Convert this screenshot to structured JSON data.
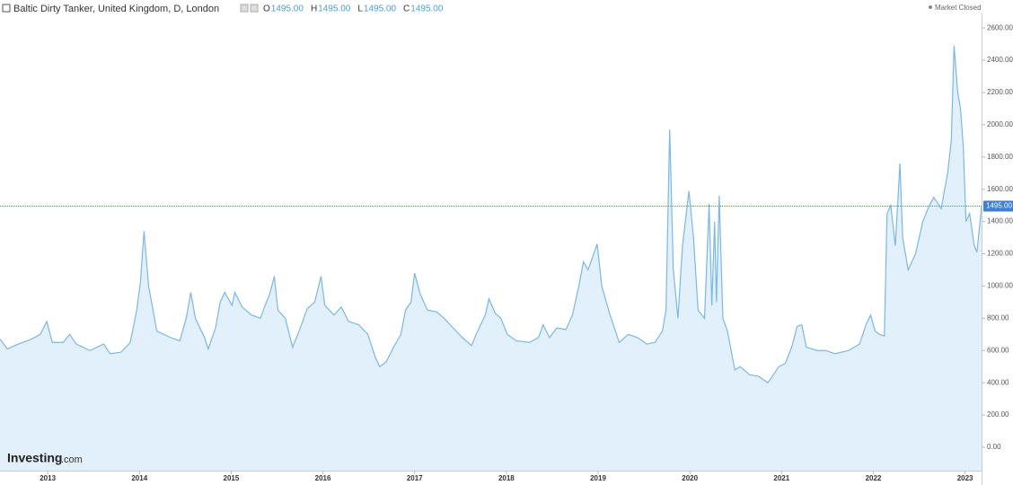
{
  "chart_data": {
    "type": "area",
    "title": "Baltic Dirty Tanker, United Kingdom, D, London",
    "ohlc": [
      {
        "name": "O",
        "value": 1495,
        "label": "1495.00"
      },
      {
        "name": "H",
        "value": 1495,
        "label": "1495.00"
      },
      {
        "name": "L",
        "value": 1495,
        "label": "1495.00"
      },
      {
        "name": "C",
        "value": 1495,
        "label": "1495.00"
      }
    ],
    "status": "Market Closed",
    "watermark": "Investing",
    "watermark_suffix": ".com",
    "last": {
      "value": 1495,
      "label": "1495.00"
    },
    "color": "#7ab8e8",
    "fill": "#e1f0fa",
    "x": [
      2012.48,
      2012.56,
      2012.68,
      2012.82,
      2012.92,
      2012.99,
      2013.05,
      2013.17,
      2013.24,
      2013.31,
      2013.46,
      2013.61,
      2013.68,
      2013.8,
      2013.9,
      2013.97,
      2014.01,
      2014.05,
      2014.1,
      2014.19,
      2014.34,
      2014.44,
      2014.51,
      2014.56,
      2014.61,
      2014.71,
      2014.75,
      2014.83,
      2014.88,
      2014.93,
      2015.01,
      2015.04,
      2015.12,
      2015.22,
      2015.32,
      2015.37,
      2015.42,
      2015.47,
      2015.51,
      2015.59,
      2015.67,
      2015.74,
      2015.83,
      2015.91,
      2015.98,
      2016.02,
      2016.12,
      2016.2,
      2016.28,
      2016.39,
      2016.49,
      2016.57,
      2016.62,
      2016.69,
      2016.77,
      2016.85,
      2016.9,
      2016.96,
      2017.0,
      2017.06,
      2017.14,
      2017.24,
      2017.32,
      2017.42,
      2017.52,
      2017.62,
      2017.67,
      2017.77,
      2017.81,
      2017.88,
      2017.94,
      2018.01,
      2018.11,
      2018.25,
      2018.35,
      2018.4,
      2018.47,
      2018.55,
      2018.65,
      2018.72,
      2018.79,
      2018.84,
      2018.89,
      2018.99,
      2019.04,
      2019.13,
      2019.23,
      2019.33,
      2019.43,
      2019.53,
      2019.62,
      2019.7,
      2019.74,
      2019.78,
      2019.82,
      2019.87,
      2019.92,
      2019.99,
      2020.04,
      2020.09,
      2020.16,
      2020.21,
      2020.24,
      2020.27,
      2020.29,
      2020.32,
      2020.36,
      2020.41,
      2020.49,
      2020.55,
      2020.65,
      2020.75,
      2020.85,
      2020.9,
      2020.97,
      2021.04,
      2021.11,
      2021.17,
      2021.22,
      2021.27,
      2021.39,
      2021.48,
      2021.58,
      2021.73,
      2021.85,
      2021.92,
      2021.97,
      2022.02,
      2022.07,
      2022.12,
      2022.15,
      2022.19,
      2022.24,
      2022.29,
      2022.32,
      2022.38,
      2022.46,
      2022.54,
      2022.61,
      2022.66,
      2022.74,
      2022.81,
      2022.85,
      2022.88,
      2022.92,
      2022.95,
      2022.98,
      2023.01,
      2023.05,
      2023.1,
      2023.13,
      2023.18
    ],
    "values": [
      670,
      610,
      640,
      670,
      700,
      780,
      650,
      650,
      700,
      640,
      600,
      640,
      580,
      590,
      650,
      850,
      1020,
      1340,
      1000,
      720,
      680,
      660,
      800,
      960,
      800,
      680,
      610,
      740,
      900,
      960,
      880,
      960,
      870,
      820,
      800,
      880,
      950,
      1060,
      850,
      800,
      620,
      720,
      860,
      900,
      1060,
      880,
      820,
      870,
      780,
      760,
      700,
      560,
      500,
      530,
      620,
      700,
      850,
      900,
      1080,
      950,
      850,
      840,
      800,
      740,
      680,
      630,
      700,
      820,
      920,
      830,
      800,
      700,
      660,
      650,
      680,
      760,
      680,
      740,
      730,
      820,
      1000,
      1150,
      1100,
      1260,
      1000,
      820,
      650,
      700,
      680,
      640,
      650,
      720,
      850,
      1970,
      1100,
      800,
      1250,
      1590,
      1300,
      850,
      800,
      1510,
      880,
      1400,
      900,
      1560,
      800,
      720,
      480,
      500,
      450,
      440,
      400,
      440,
      500,
      520,
      620,
      750,
      760,
      620,
      600,
      600,
      580,
      600,
      640,
      760,
      820,
      720,
      700,
      690,
      1450,
      1500,
      1250,
      1760,
      1300,
      1100,
      1200,
      1400,
      1500,
      1550,
      1480,
      1700,
      1900,
      2490,
      2200,
      2100,
      1870,
      1400,
      1450,
      1250,
      1210,
      1495
    ],
    "xlim": [
      2012.48,
      2023.18
    ],
    "xticks": [
      2013,
      2014,
      2015,
      2016,
      2017,
      2018,
      2019,
      2020,
      2021,
      2022,
      2023
    ],
    "ylim": [
      -145,
      2690
    ],
    "yticks": [
      {
        "value": 0,
        "label": "0.00"
      },
      {
        "value": 200,
        "label": "200.00"
      },
      {
        "value": 400,
        "label": "400.00"
      },
      {
        "value": 600,
        "label": "600.00"
      },
      {
        "value": 800,
        "label": "800.00"
      },
      {
        "value": 1000,
        "label": "1000.00"
      },
      {
        "value": 1200,
        "label": "1200.00"
      },
      {
        "value": 1400,
        "label": "1400.00"
      },
      {
        "value": 1600,
        "label": "1600.00"
      },
      {
        "value": 1800,
        "label": "1800.00"
      },
      {
        "value": 2000,
        "label": "2000.00"
      },
      {
        "value": 2200,
        "label": "2200.00"
      },
      {
        "value": 2400,
        "label": "2400.00"
      },
      {
        "value": 2600,
        "label": "2600.00"
      }
    ],
    "grid": false
  }
}
